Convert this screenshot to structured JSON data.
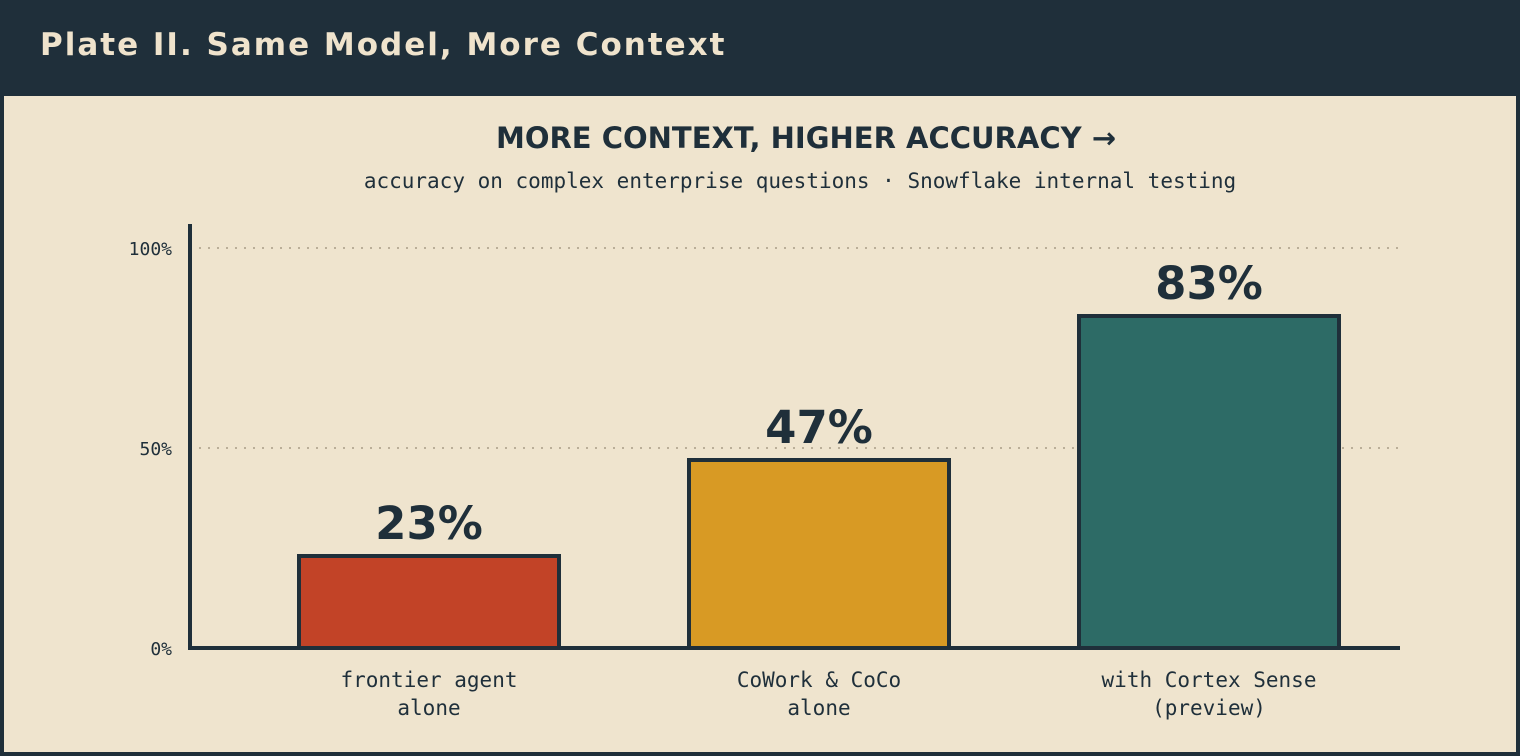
{
  "header": {
    "title": "Plate II. Same Model, More Context"
  },
  "chart_data": {
    "type": "bar",
    "title": "MORE CONTEXT, HIGHER ACCURACY →",
    "subtitle": "accuracy on complex enterprise questions · Snowflake internal testing",
    "categories": [
      [
        "frontier agent",
        "alone"
      ],
      [
        "CoWork & CoCo",
        "alone"
      ],
      [
        "with Cortex Sense",
        "(preview)"
      ]
    ],
    "values": [
      23,
      47,
      83
    ],
    "data_labels": [
      "23%",
      "47%",
      "83%"
    ],
    "colors": [
      "#c24327",
      "#d89a24",
      "#2d6b66"
    ],
    "ylim": [
      0,
      100
    ],
    "yticks": [
      0,
      50,
      100
    ],
    "ytick_labels": [
      "0%",
      "50%",
      "100%"
    ],
    "grid": true,
    "legend": "none",
    "xlabel": "",
    "ylabel": ""
  },
  "colors": {
    "header_bg": "#1f2f3a",
    "panel_bg": "#efe4ce",
    "ink": "#1f2f3a",
    "grid": "#a99b86"
  }
}
